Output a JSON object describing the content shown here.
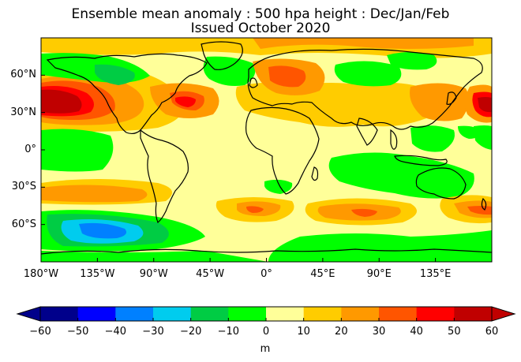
{
  "title": "Ensemble mean anomaly : 500 hpa height : Dec/Jan/Feb",
  "subtitle": "Issued October 2020",
  "x_ticks": [
    "180°W",
    "135°W",
    "90°W",
    "45°W",
    "0°",
    "45°E",
    "90°E",
    "135°E"
  ],
  "y_ticks": [
    "60°N",
    "30°N",
    "0°",
    "30°S",
    "60°S"
  ],
  "colorbar": {
    "ticks": [
      "−60",
      "−50",
      "−40",
      "−30",
      "−20",
      "−10",
      "0",
      "10",
      "20",
      "30",
      "40",
      "50",
      "60"
    ],
    "unit": "m",
    "colors": [
      "#00008b",
      "#0000ff",
      "#0080ff",
      "#00ccee",
      "#00cc44",
      "#00ff00",
      "#ffff99",
      "#ffcc00",
      "#ff9900",
      "#ff5500",
      "#ff0000",
      "#c00000"
    ]
  },
  "colors": {
    "neutral": "#ffff99",
    "land_outline": "#000000"
  }
}
